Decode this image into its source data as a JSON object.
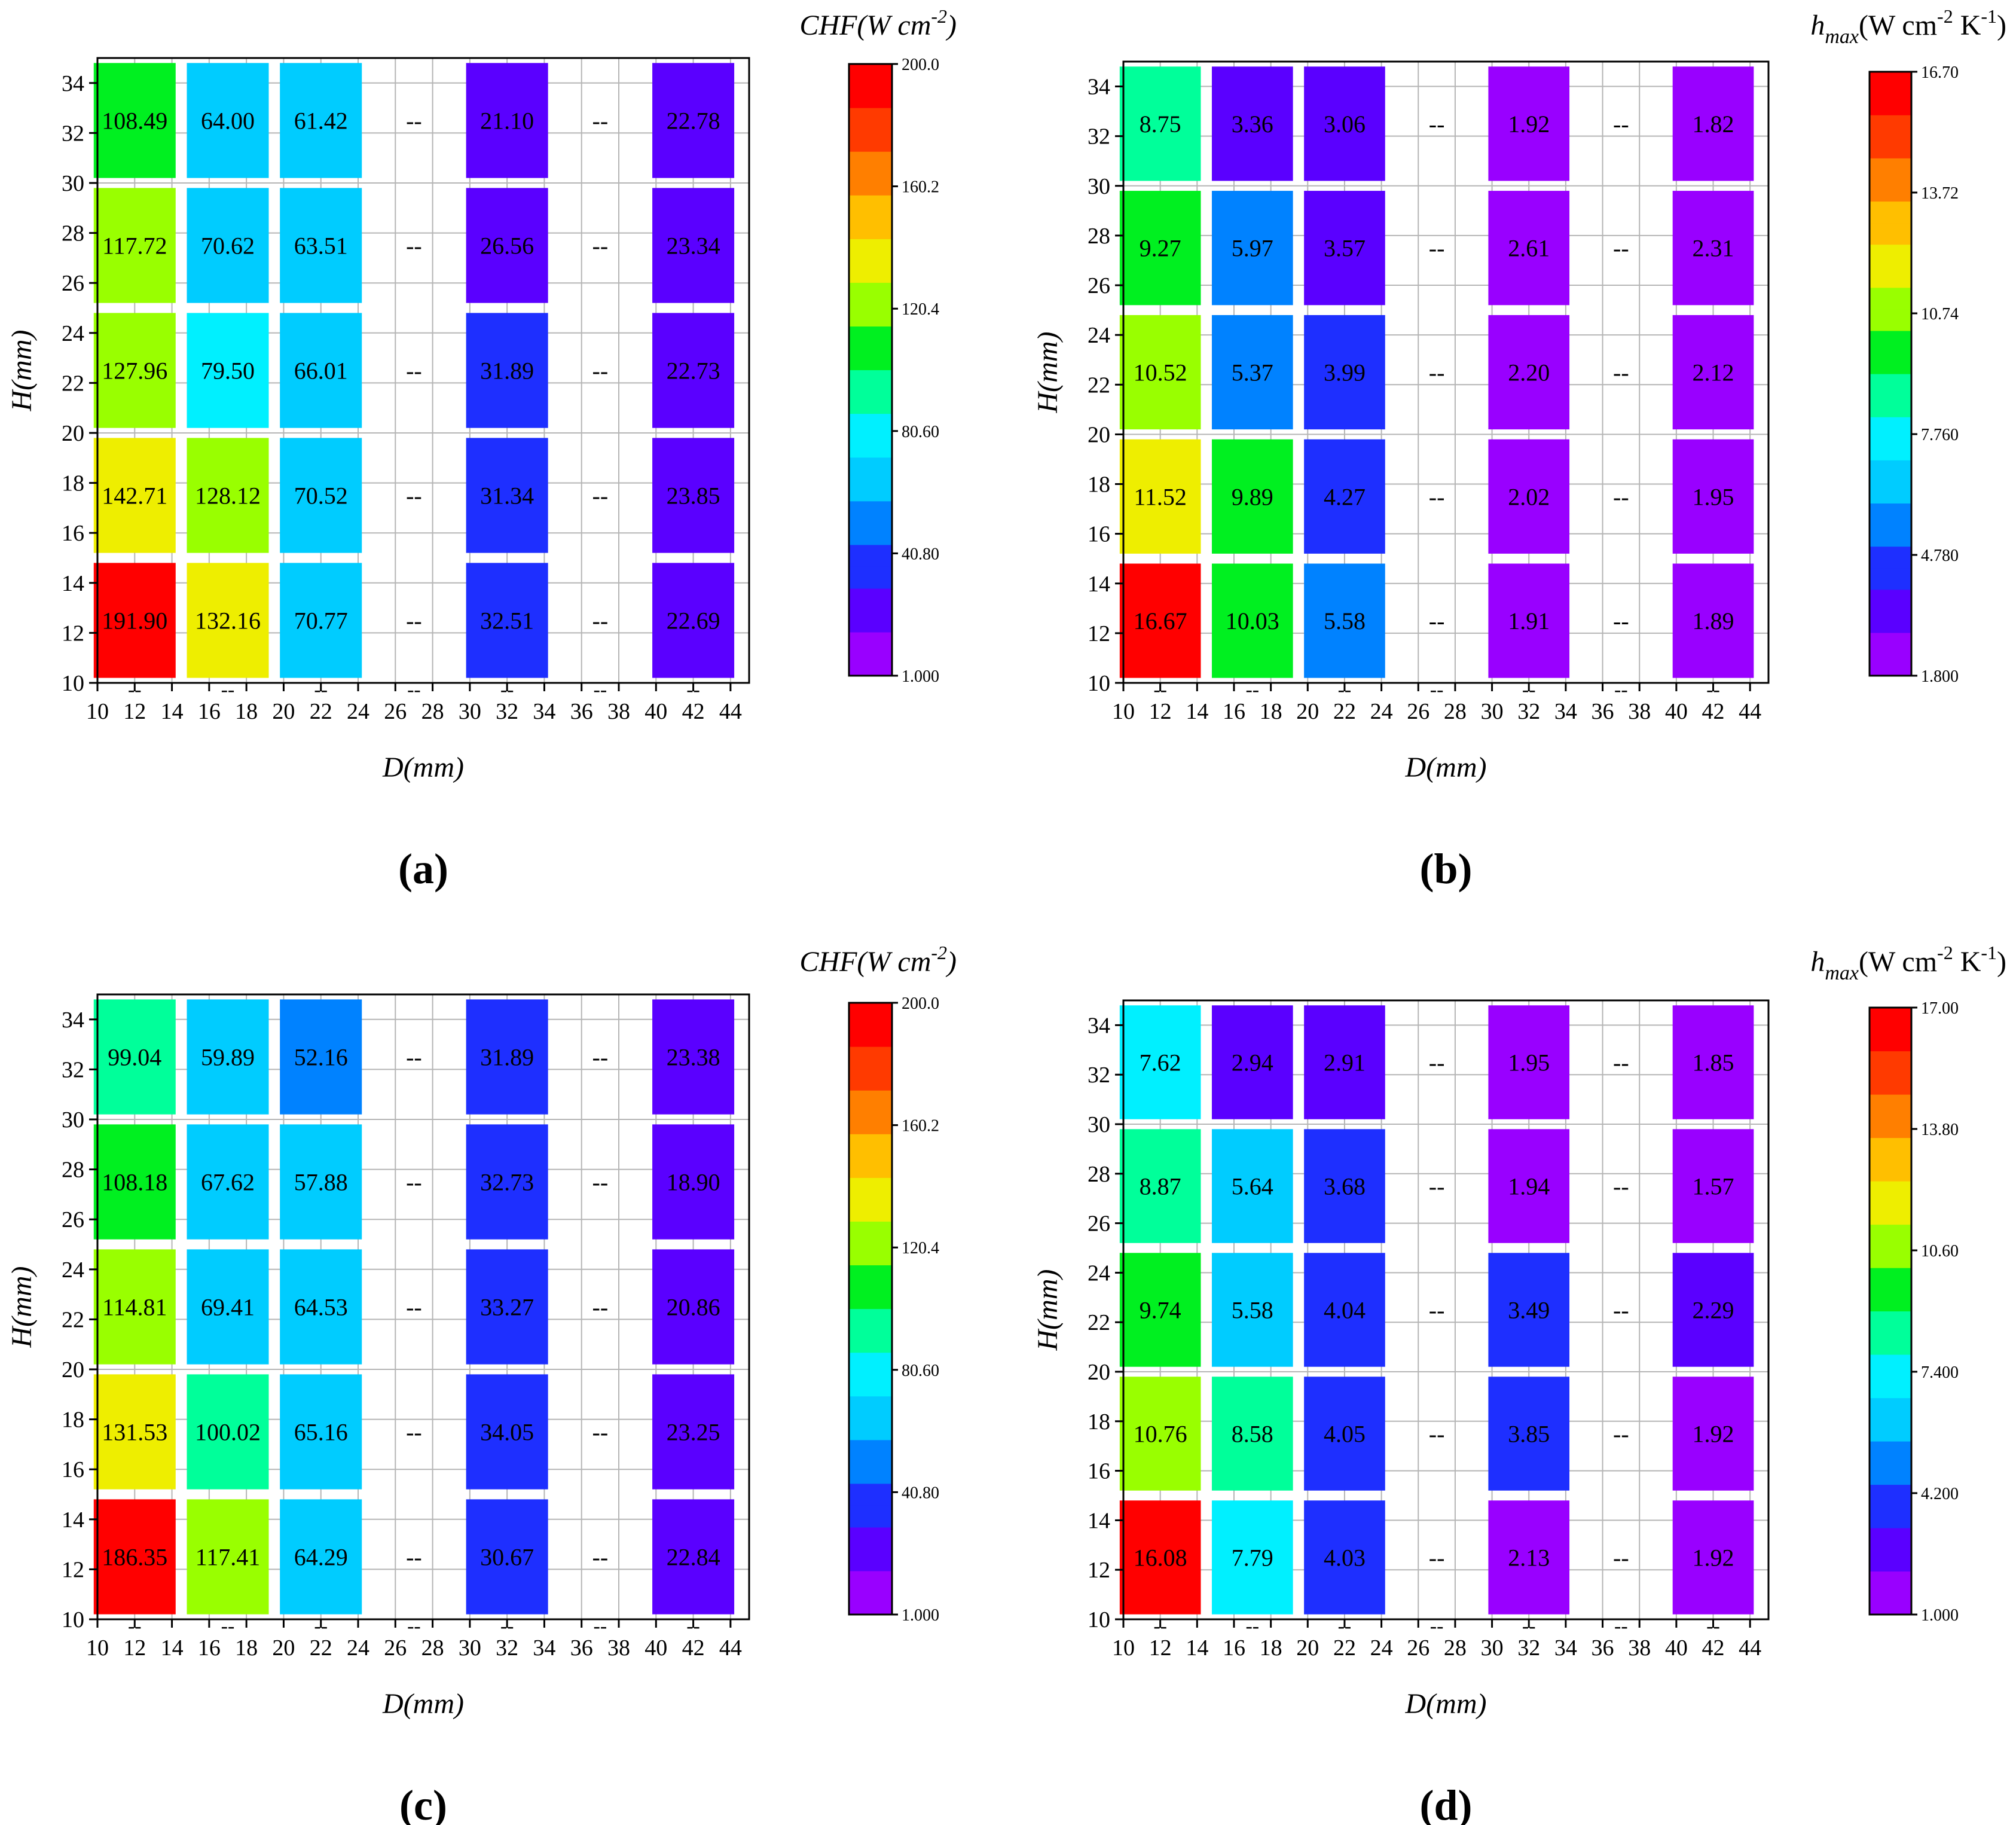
{
  "figure": {
    "d_columns": [
      12,
      17,
      22,
      27,
      32,
      37,
      42
    ],
    "h_rows": [
      32.5,
      27.5,
      22.5,
      17.5,
      12.5
    ],
    "missing_value_text": "--",
    "colormap": [
      "#9900ff",
      "#5a00ff",
      "#1e2fff",
      "#0082ff",
      "#00ccff",
      "#00f0ff",
      "#00ff9a",
      "#00f020",
      "#99ff00",
      "#eeee00",
      "#ffbf00",
      "#ff7f00",
      "#ff3a00",
      "#ff0000"
    ]
  },
  "chart_data": [
    {
      "type": "heatmap",
      "panel_label": "(a)",
      "quantity": "CHF",
      "colorbar_title": {
        "main": "CHF(W cm",
        "sup": "-2",
        "tail": ")",
        "italic": true
      },
      "xlabel": "D(mm)",
      "ylabel": "H(mm)",
      "xlim": [
        10,
        45
      ],
      "ylim": [
        10,
        35
      ],
      "xticks": [
        "10",
        "12",
        "14",
        "16",
        "18",
        "20",
        "22",
        "24",
        "26",
        "28",
        "30",
        "32",
        "34",
        "36",
        "38",
        "40",
        "42",
        "44"
      ],
      "yticks": [
        "10",
        "12",
        "14",
        "16",
        "18",
        "20",
        "22",
        "24",
        "26",
        "28",
        "30",
        "32",
        "34"
      ],
      "colorbar_range": [
        1.0,
        200.0
      ],
      "colorbar_ticks": [
        "1.000",
        "40.80",
        "80.60",
        "120.4",
        "160.2",
        "200.0"
      ],
      "values": [
        [
          108.49,
          64.0,
          61.42,
          null,
          21.1,
          null,
          22.78
        ],
        [
          117.72,
          70.62,
          63.51,
          null,
          26.56,
          null,
          23.34
        ],
        [
          127.96,
          79.5,
          66.01,
          null,
          31.89,
          null,
          22.73
        ],
        [
          142.71,
          128.12,
          70.52,
          null,
          31.34,
          null,
          23.85
        ],
        [
          191.9,
          132.16,
          70.77,
          null,
          32.51,
          null,
          22.69
        ]
      ],
      "labels": [
        [
          "108.49",
          "64.00",
          "61.42",
          "--",
          "21.10",
          "--",
          "22.78"
        ],
        [
          "117.72",
          "70.62",
          "63.51",
          "--",
          "26.56",
          "--",
          "23.34"
        ],
        [
          "127.96",
          "79.50",
          "66.01",
          "--",
          "31.89",
          "--",
          "22.73"
        ],
        [
          "142.71",
          "128.12",
          "70.52",
          "--",
          "31.34",
          "--",
          "23.85"
        ],
        [
          "191.90",
          "132.16",
          "70.77",
          "--",
          "32.51",
          "--",
          "22.69"
        ]
      ]
    },
    {
      "type": "heatmap",
      "panel_label": "(b)",
      "quantity": "h_max",
      "colorbar_title": {
        "main": "h",
        "sub": "max",
        "rest": "(W cm",
        "sup1": "-2",
        "mid": " K",
        "sup2": "-1",
        "tail": ")"
      },
      "xlabel": "D(mm)",
      "ylabel": "H(mm)",
      "xlim": [
        10,
        45
      ],
      "ylim": [
        10,
        35
      ],
      "xticks": [
        "10",
        "12",
        "14",
        "16",
        "18",
        "20",
        "22",
        "24",
        "26",
        "28",
        "30",
        "32",
        "34",
        "36",
        "38",
        "40",
        "42",
        "44"
      ],
      "yticks": [
        "10",
        "12",
        "14",
        "16",
        "18",
        "20",
        "22",
        "24",
        "26",
        "28",
        "30",
        "32",
        "34"
      ],
      "colorbar_range": [
        1.8,
        16.7
      ],
      "colorbar_ticks": [
        "1.800",
        "4.780",
        "7.760",
        "10.74",
        "13.72",
        "16.70"
      ],
      "values": [
        [
          8.75,
          3.36,
          3.06,
          null,
          1.92,
          null,
          1.82
        ],
        [
          9.27,
          5.97,
          3.57,
          null,
          2.61,
          null,
          2.31
        ],
        [
          10.52,
          5.37,
          3.99,
          null,
          2.2,
          null,
          2.12
        ],
        [
          11.52,
          9.89,
          4.27,
          null,
          2.02,
          null,
          1.95
        ],
        [
          16.67,
          10.03,
          5.58,
          null,
          1.91,
          null,
          1.89
        ]
      ],
      "labels": [
        [
          "8.75",
          "3.36",
          "3.06",
          "--",
          "1.92",
          "--",
          "1.82"
        ],
        [
          "9.27",
          "5.97",
          "3.57",
          "--",
          "2.61",
          "--",
          "2.31"
        ],
        [
          "10.52",
          "5.37",
          "3.99",
          "--",
          "2.20",
          "--",
          "2.12"
        ],
        [
          "11.52",
          "9.89",
          "4.27",
          "--",
          "2.02",
          "--",
          "1.95"
        ],
        [
          "16.67",
          "10.03",
          "5.58",
          "--",
          "1.91",
          "--",
          "1.89"
        ]
      ]
    },
    {
      "type": "heatmap",
      "panel_label": "(c)",
      "quantity": "CHF",
      "colorbar_title": {
        "main": "CHF(W cm",
        "sup": "-2",
        "tail": ")",
        "italic": true
      },
      "xlabel": "D(mm)",
      "ylabel": "H(mm)",
      "xlim": [
        10,
        45
      ],
      "ylim": [
        10,
        35
      ],
      "xticks": [
        "10",
        "12",
        "14",
        "16",
        "18",
        "20",
        "22",
        "24",
        "26",
        "28",
        "30",
        "32",
        "34",
        "36",
        "38",
        "40",
        "42",
        "44"
      ],
      "yticks": [
        "10",
        "12",
        "14",
        "16",
        "18",
        "20",
        "22",
        "24",
        "26",
        "28",
        "30",
        "32",
        "34"
      ],
      "colorbar_range": [
        1.0,
        200.0
      ],
      "colorbar_ticks": [
        "1.000",
        "40.80",
        "80.60",
        "120.4",
        "160.2",
        "200.0"
      ],
      "values": [
        [
          99.04,
          59.89,
          52.16,
          null,
          31.89,
          null,
          23.38
        ],
        [
          108.18,
          67.62,
          57.88,
          null,
          32.73,
          null,
          18.9
        ],
        [
          114.81,
          69.41,
          64.53,
          null,
          33.27,
          null,
          20.86
        ],
        [
          131.53,
          100.02,
          65.16,
          null,
          34.05,
          null,
          23.25
        ],
        [
          186.35,
          117.41,
          64.29,
          null,
          30.67,
          null,
          22.84
        ]
      ],
      "labels": [
        [
          "99.04",
          "59.89",
          "52.16",
          "--",
          "31.89",
          "--",
          "23.38"
        ],
        [
          "108.18",
          "67.62",
          "57.88",
          "--",
          "32.73",
          "--",
          "18.90"
        ],
        [
          "114.81",
          "69.41",
          "64.53",
          "--",
          "33.27",
          "--",
          "20.86"
        ],
        [
          "131.53",
          "100.02",
          "65.16",
          "--",
          "34.05",
          "--",
          "23.25"
        ],
        [
          "186.35",
          "117.41",
          "64.29",
          "--",
          "30.67",
          "--",
          "22.84"
        ]
      ]
    },
    {
      "type": "heatmap",
      "panel_label": "(d)",
      "quantity": "h_max",
      "colorbar_title": {
        "main": "h",
        "sub": "max",
        "rest": "(W cm",
        "sup1": "-2",
        "mid": " K",
        "sup2": "-1",
        "tail": ")"
      },
      "xlabel": "D(mm)",
      "ylabel": "H(mm)",
      "xlim": [
        10,
        45
      ],
      "ylim": [
        10,
        35
      ],
      "xticks": [
        "10",
        "12",
        "14",
        "16",
        "18",
        "20",
        "22",
        "24",
        "26",
        "28",
        "30",
        "32",
        "34",
        "36",
        "38",
        "40",
        "42",
        "44"
      ],
      "yticks": [
        "10",
        "12",
        "14",
        "16",
        "18",
        "20",
        "22",
        "24",
        "26",
        "28",
        "30",
        "32",
        "34"
      ],
      "colorbar_range": [
        1.0,
        17.0
      ],
      "colorbar_ticks": [
        "1.000",
        "4.200",
        "7.400",
        "10.60",
        "13.80",
        "17.00"
      ],
      "values": [
        [
          7.62,
          2.94,
          2.91,
          null,
          1.95,
          null,
          1.85
        ],
        [
          8.87,
          5.64,
          3.68,
          null,
          1.94,
          null,
          1.57
        ],
        [
          9.74,
          5.58,
          4.04,
          null,
          3.49,
          null,
          2.29
        ],
        [
          10.76,
          8.58,
          4.05,
          null,
          3.85,
          null,
          1.92
        ],
        [
          16.08,
          7.79,
          4.03,
          null,
          2.13,
          null,
          1.92
        ]
      ],
      "labels": [
        [
          "7.62",
          "2.94",
          "2.91",
          "--",
          "1.95",
          "--",
          "1.85"
        ],
        [
          "8.87",
          "5.64",
          "3.68",
          "--",
          "1.94",
          "--",
          "1.57"
        ],
        [
          "9.74",
          "5.58",
          "4.04",
          "--",
          "3.49",
          "--",
          "2.29"
        ],
        [
          "10.76",
          "8.58",
          "4.05",
          "--",
          "3.85",
          "--",
          "1.92"
        ],
        [
          "16.08",
          "7.79",
          "4.03",
          "--",
          "2.13",
          "--",
          "1.92"
        ]
      ]
    }
  ]
}
